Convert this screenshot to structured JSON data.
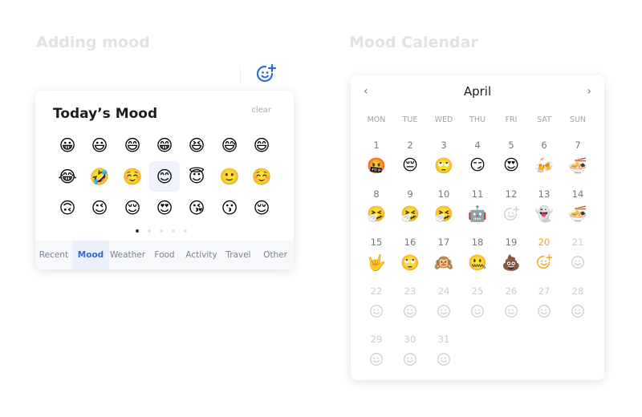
{
  "left_section_title": "Adding mood",
  "right_section_title": "Mood Calendar",
  "add_mood_icon": "smiley-plus-icon",
  "accent": "#2f6ad6",
  "picker": {
    "title": "Today’s Mood",
    "clear_label": "clear",
    "emojis": [
      "😀",
      "😃",
      "😄",
      "😁",
      "😆",
      "😅",
      "😄",
      "😂",
      "🤣",
      "☺️",
      "😊",
      "😇",
      "🙂",
      "☺️",
      "🙃",
      "😉",
      "😌",
      "😍",
      "😘",
      "😗",
      "😌"
    ],
    "selected_index": 10,
    "pages": 5,
    "current_page": 1,
    "tabs": [
      "Recent",
      "Mood",
      "Weather",
      "Food",
      "Activity",
      "Travel",
      "Other"
    ],
    "active_tab": "Mood"
  },
  "calendar": {
    "month": "April",
    "weekdays": [
      "MON",
      "TUE",
      "WED",
      "THU",
      "FRI",
      "SAT",
      "SUN"
    ],
    "today": 20,
    "days": [
      {
        "d": "1",
        "e": "🤬"
      },
      {
        "d": "2",
        "e": "😔"
      },
      {
        "d": "3",
        "e": "🙄"
      },
      {
        "d": "4",
        "e": "😏"
      },
      {
        "d": "5",
        "e": "😍"
      },
      {
        "d": "6",
        "e": "🍻"
      },
      {
        "d": "7",
        "e": "🍜"
      },
      {
        "d": "8",
        "e": "🤧"
      },
      {
        "d": "9",
        "e": "🤧"
      },
      {
        "d": "10",
        "e": "🤧"
      },
      {
        "d": "11",
        "e": "🤖"
      },
      {
        "d": "12",
        "e": "add"
      },
      {
        "d": "13",
        "e": "👻"
      },
      {
        "d": "14",
        "e": "🍜"
      },
      {
        "d": "15",
        "e": "🤟"
      },
      {
        "d": "16",
        "e": "🙄"
      },
      {
        "d": "17",
        "e": "🙉"
      },
      {
        "d": "18",
        "e": "🤐"
      },
      {
        "d": "19",
        "e": "💩"
      },
      {
        "d": "20",
        "e": "add-today"
      },
      {
        "d": "21",
        "e": "empty"
      },
      {
        "d": "22",
        "e": "empty"
      },
      {
        "d": "23",
        "e": "empty"
      },
      {
        "d": "24",
        "e": "empty"
      },
      {
        "d": "25",
        "e": "empty"
      },
      {
        "d": "26",
        "e": "empty"
      },
      {
        "d": "27",
        "e": "empty"
      },
      {
        "d": "28",
        "e": "empty"
      },
      {
        "d": "29",
        "e": "empty"
      },
      {
        "d": "30",
        "e": "empty"
      },
      {
        "d": "31",
        "e": "empty"
      }
    ]
  }
}
